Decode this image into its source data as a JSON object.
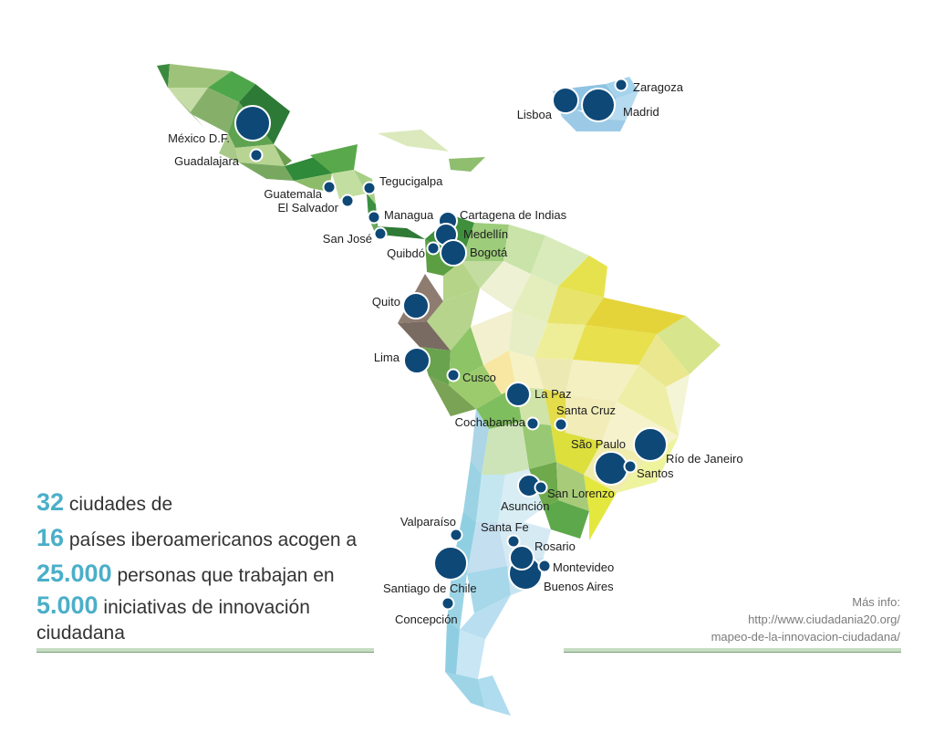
{
  "stats": {
    "line1": {
      "num": "32",
      "text": "ciudades de"
    },
    "line2": {
      "num": "16",
      "text": "países iberoamericanos acogen a"
    },
    "line3": {
      "num": "25.000",
      "text": "personas que trabajan en"
    },
    "line4": {
      "num": "5.000",
      "text": "iniciativas de innovación ciudadana"
    }
  },
  "info": {
    "title": "Más info:",
    "url_line1": "http://www.ciudadania20.org/",
    "url_line2": "mapeo-de-la-innovacion-ciudadana/"
  },
  "cities": [
    {
      "name": "México D.F."
    },
    {
      "name": "Guadalajara"
    },
    {
      "name": "Guatemala"
    },
    {
      "name": "El Salvador"
    },
    {
      "name": "Tegucigalpa"
    },
    {
      "name": "Managua"
    },
    {
      "name": "San José"
    },
    {
      "name": "Cartagena de Indias"
    },
    {
      "name": "Medellín"
    },
    {
      "name": "Quibdó"
    },
    {
      "name": "Bogotá"
    },
    {
      "name": "Quito"
    },
    {
      "name": "Lima"
    },
    {
      "name": "Cusco"
    },
    {
      "name": "La Paz"
    },
    {
      "name": "Cochabamba"
    },
    {
      "name": "Santa Cruz"
    },
    {
      "name": "São Paulo"
    },
    {
      "name": "Río de Janeiro"
    },
    {
      "name": "Santos"
    },
    {
      "name": "Asunción"
    },
    {
      "name": "San Lorenzo"
    },
    {
      "name": "Valparaíso"
    },
    {
      "name": "Santa Fe"
    },
    {
      "name": "Rosario"
    },
    {
      "name": "Santiago de Chile"
    },
    {
      "name": "Montevideo"
    },
    {
      "name": "Buenos Aires"
    },
    {
      "name": "Concepción"
    },
    {
      "name": "Lisboa"
    },
    {
      "name": "Madrid"
    },
    {
      "name": "Zaragoza"
    }
  ],
  "colors": {
    "marker": "#0e4877",
    "accent_number": "#4bafc9",
    "text": "#333333",
    "info_text": "#7b7b7b"
  }
}
